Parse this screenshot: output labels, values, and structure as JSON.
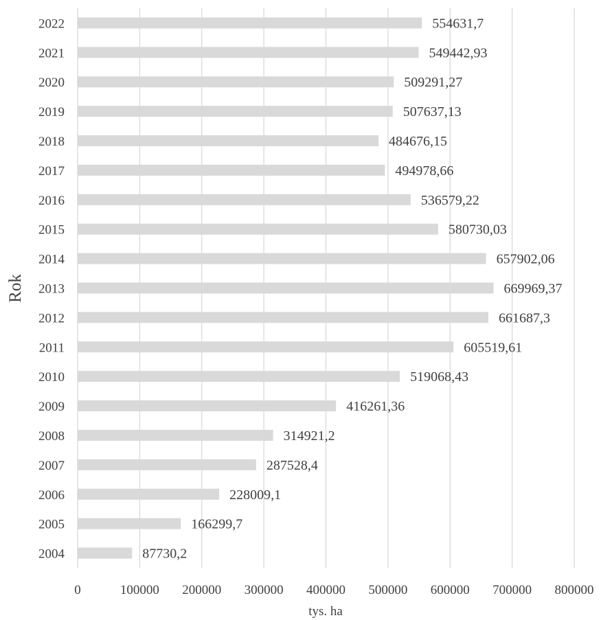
{
  "chart_data": {
    "type": "bar",
    "orientation": "horizontal",
    "title": "",
    "xlabel": "tys. ha",
    "ylabel": "Rok",
    "xlim": [
      0,
      800000
    ],
    "xticks": [
      0,
      100000,
      200000,
      300000,
      400000,
      500000,
      600000,
      700000,
      800000
    ],
    "grid": true,
    "legend": "none",
    "bar_color": "#d9d9d9",
    "categories": [
      "2022",
      "2021",
      "2020",
      "2019",
      "2018",
      "2017",
      "2016",
      "2015",
      "2014",
      "2013",
      "2012",
      "2011",
      "2010",
      "2009",
      "2008",
      "2007",
      "2006",
      "2005",
      "2004"
    ],
    "values": [
      554631.7,
      549442.93,
      509291.27,
      507637.13,
      484676.15,
      494978.66,
      536579.22,
      580730.03,
      657902.06,
      669969.37,
      661687.3,
      605519.61,
      519068.43,
      416261.36,
      314921.2,
      287528.4,
      228009.1,
      166299.7,
      87730.2
    ],
    "data_labels": [
      "554631,7",
      "549442,93",
      "509291,27",
      "507637,13",
      "484676,15",
      "494978,66",
      "536579,22",
      "580730,03",
      "657902,06",
      "669969,37",
      "661687,3",
      "605519,61",
      "519068,43",
      "416261,36",
      "314921,2",
      "287528,4",
      "228009,1",
      "166299,7",
      "87730,2"
    ]
  }
}
